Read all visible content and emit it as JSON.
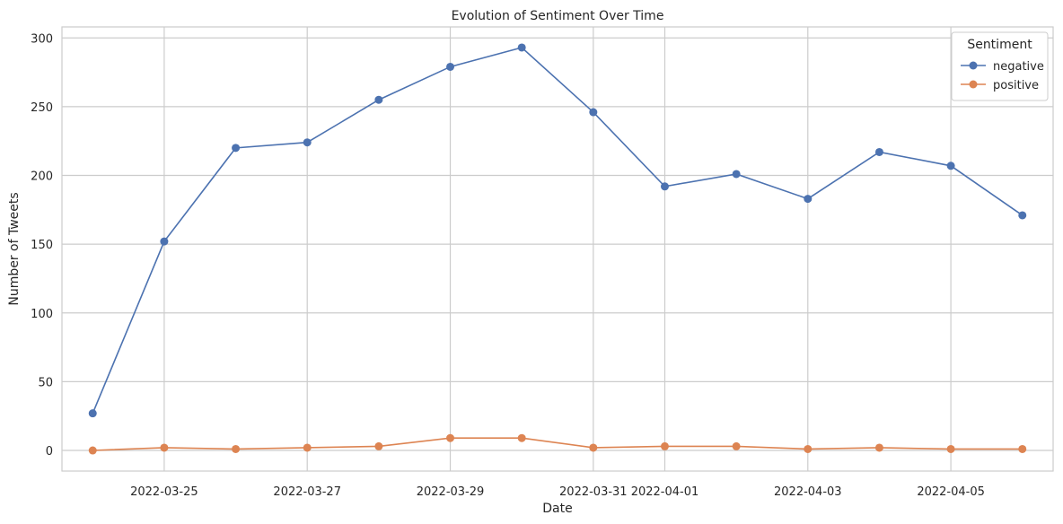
{
  "chart_data": {
    "type": "line",
    "title": "Evolution of Sentiment Over Time",
    "xlabel": "Date",
    "ylabel": "Number of Tweets",
    "x": [
      "2022-03-24",
      "2022-03-25",
      "2022-03-26",
      "2022-03-27",
      "2022-03-28",
      "2022-03-29",
      "2022-03-30",
      "2022-03-31",
      "2022-04-01",
      "2022-04-02",
      "2022-04-03",
      "2022-04-04",
      "2022-04-05",
      "2022-04-06"
    ],
    "x_ticks": [
      "2022-03-25",
      "2022-03-27",
      "2022-03-29",
      "2022-03-31",
      "2022-04-01",
      "2022-04-03",
      "2022-04-05"
    ],
    "y_ticks": [
      0,
      50,
      100,
      150,
      200,
      250,
      300
    ],
    "ylim": [
      -15,
      308
    ],
    "xlim": [
      "2022-03-23",
      "2022-04-06"
    ],
    "grid": true,
    "legend": {
      "title": "Sentiment",
      "placement": "top-right"
    },
    "series": [
      {
        "name": "negative",
        "color": "#4c72b0",
        "values": [
          27,
          152,
          220,
          224,
          255,
          279,
          293,
          246,
          192,
          201,
          183,
          217,
          207,
          171
        ]
      },
      {
        "name": "positive",
        "color": "#dd8452",
        "values": [
          0,
          2,
          1,
          2,
          3,
          9,
          9,
          2,
          3,
          3,
          1,
          2,
          1,
          1
        ]
      }
    ]
  }
}
